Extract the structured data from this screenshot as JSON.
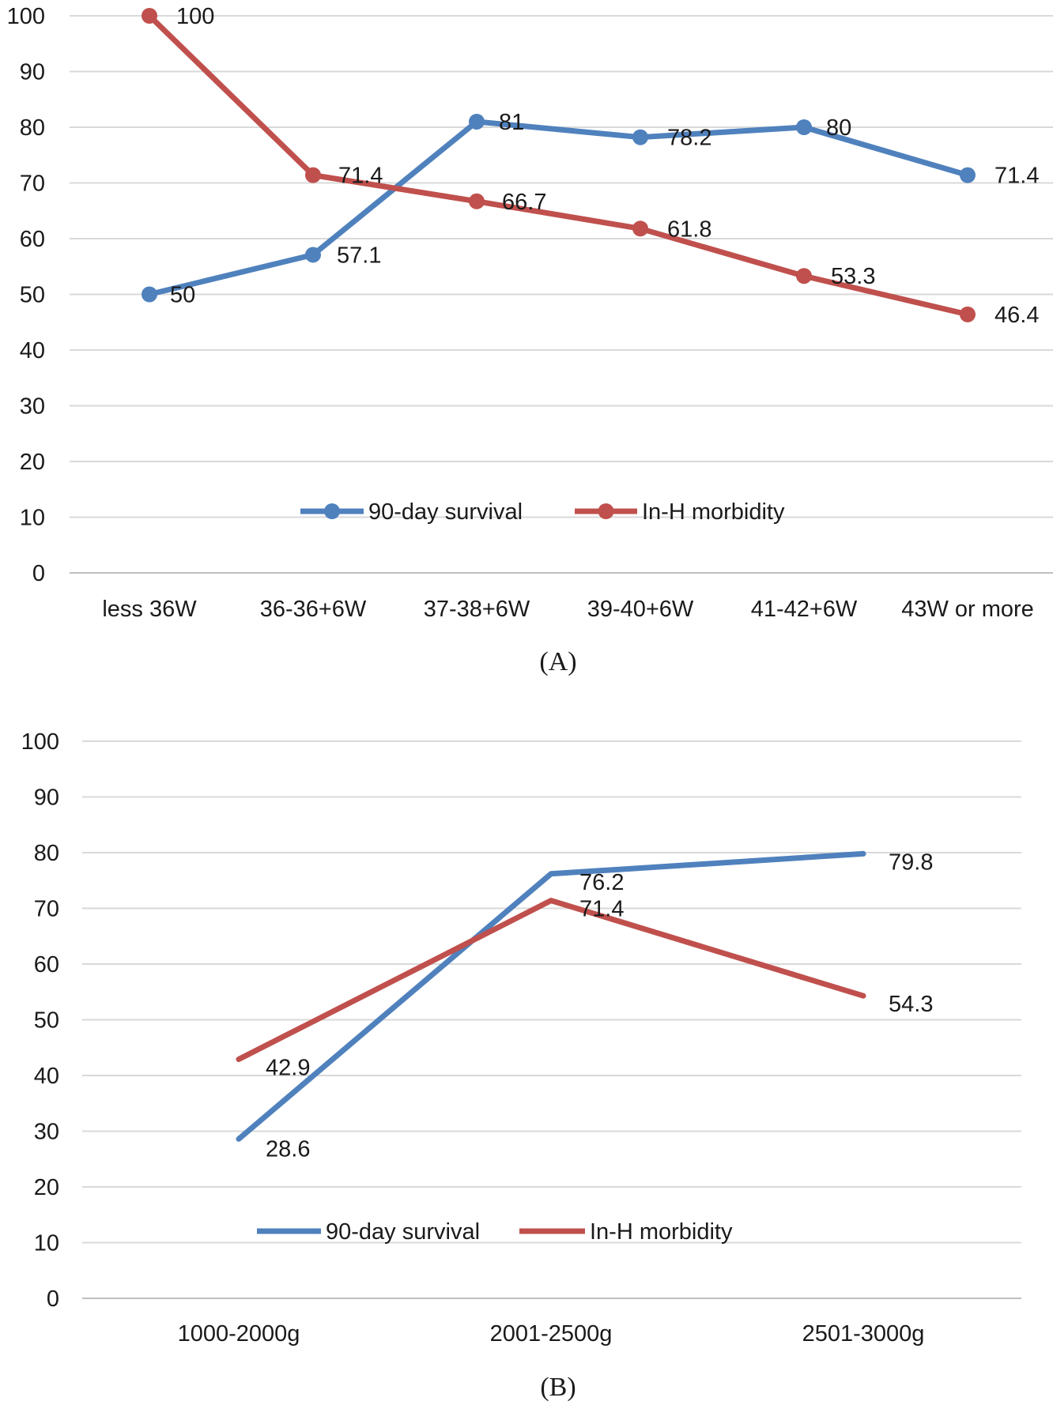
{
  "chart_data": [
    {
      "type": "line",
      "title": "(A)",
      "categories": [
        "less 36W",
        "36-36+6W",
        "37-38+6W",
        "39-40+6W",
        "41-42+6W",
        "43W or more"
      ],
      "series": [
        {
          "name": "90-day survival",
          "color": "#4f81bd",
          "markers": true,
          "values": [
            50,
            57.1,
            81,
            78.2,
            80,
            71.4
          ]
        },
        {
          "name": "In-H morbidity",
          "color": "#c0504d",
          "markers": true,
          "values": [
            100,
            71.4,
            66.7,
            61.8,
            53.3,
            46.4
          ]
        }
      ],
      "ylim": [
        0,
        100
      ],
      "yticks": [
        0,
        10,
        20,
        30,
        40,
        50,
        60,
        70,
        80,
        90,
        100
      ],
      "grid": true,
      "legend": "bottom-center"
    },
    {
      "type": "line",
      "title": "(B)",
      "categories": [
        "1000-2000g",
        "2001-2500g",
        "2501-3000g"
      ],
      "series": [
        {
          "name": "90-day survival",
          "color": "#4f81bd",
          "markers": false,
          "values": [
            28.6,
            76.2,
            79.8
          ]
        },
        {
          "name": "In-H morbidity",
          "color": "#c0504d",
          "markers": false,
          "values": [
            42.9,
            71.4,
            54.3
          ]
        }
      ],
      "ylim": [
        0,
        100
      ],
      "yticks": [
        0,
        10,
        20,
        30,
        40,
        50,
        60,
        70,
        80,
        90,
        100
      ],
      "grid": true,
      "legend": "bottom-center"
    }
  ]
}
